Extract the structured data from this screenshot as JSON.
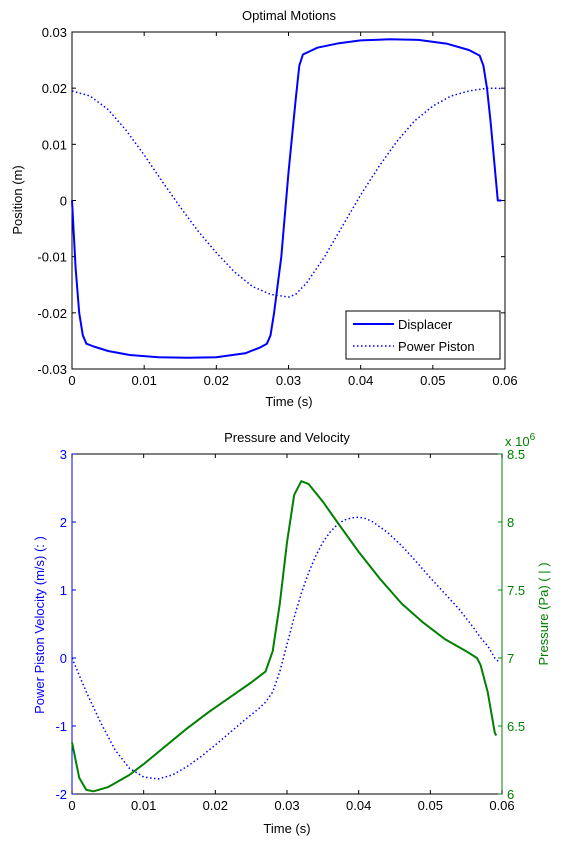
{
  "chart_data": [
    {
      "type": "line",
      "title": "Optimal Motions",
      "xlabel": "Time (s)",
      "ylabel": "Position (m)",
      "xlim": [
        0,
        0.06
      ],
      "ylim": [
        -0.03,
        0.03
      ],
      "xticks": [
        "0",
        "0.01",
        "0.02",
        "0.03",
        "0.04",
        "0.05",
        "0.06"
      ],
      "yticks": [
        "-0.03",
        "-0.02",
        "-0.01",
        "0",
        "0.01",
        "0.02",
        "0.03"
      ],
      "legend_position": "bottom-right",
      "grid": false,
      "series": [
        {
          "name": "Displacer",
          "color": "#0000ff",
          "style": "solid",
          "points": [
            [
              0,
              0
            ],
            [
              0.0005,
              -0.012
            ],
            [
              0.001,
              -0.02
            ],
            [
              0.0015,
              -0.024
            ],
            [
              0.002,
              -0.0255
            ],
            [
              0.003,
              -0.026
            ],
            [
              0.005,
              -0.0268
            ],
            [
              0.008,
              -0.0275
            ],
            [
              0.012,
              -0.0279
            ],
            [
              0.016,
              -0.028
            ],
            [
              0.02,
              -0.0279
            ],
            [
              0.024,
              -0.0272
            ],
            [
              0.026,
              -0.0262
            ],
            [
              0.027,
              -0.0255
            ],
            [
              0.0275,
              -0.024
            ],
            [
              0.028,
              -0.02
            ],
            [
              0.029,
              -0.01
            ],
            [
              0.03,
              0.005
            ],
            [
              0.031,
              0.018
            ],
            [
              0.0315,
              0.024
            ],
            [
              0.032,
              0.026
            ],
            [
              0.034,
              0.0272
            ],
            [
              0.037,
              0.028
            ],
            [
              0.04,
              0.0285
            ],
            [
              0.044,
              0.0287
            ],
            [
              0.048,
              0.0286
            ],
            [
              0.052,
              0.0279
            ],
            [
              0.055,
              0.0268
            ],
            [
              0.0565,
              0.0258
            ],
            [
              0.057,
              0.024
            ],
            [
              0.0575,
              0.02
            ],
            [
              0.058,
              0.014
            ],
            [
              0.0585,
              0.007
            ],
            [
              0.059,
              0
            ],
            [
              0.0595,
              0
            ]
          ]
        },
        {
          "name": "Power Piston",
          "color": "#0000ff",
          "style": "dotted",
          "points": [
            [
              0,
              0.0195
            ],
            [
              0.0025,
              0.0186
            ],
            [
              0.005,
              0.0162
            ],
            [
              0.0075,
              0.0125
            ],
            [
              0.01,
              0.0081
            ],
            [
              0.0125,
              0.0034
            ],
            [
              0.015,
              -0.0012
            ],
            [
              0.0175,
              -0.0055
            ],
            [
              0.02,
              -0.0093
            ],
            [
              0.0225,
              -0.0127
            ],
            [
              0.025,
              -0.0153
            ],
            [
              0.0275,
              -0.0167
            ],
            [
              0.03,
              -0.0172
            ],
            [
              0.031,
              -0.0167
            ],
            [
              0.0325,
              -0.0147
            ],
            [
              0.035,
              -0.01
            ],
            [
              0.0375,
              -0.0045
            ],
            [
              0.04,
              0.001
            ],
            [
              0.0425,
              0.006
            ],
            [
              0.045,
              0.0105
            ],
            [
              0.0475,
              0.0142
            ],
            [
              0.05,
              0.0168
            ],
            [
              0.0525,
              0.0186
            ],
            [
              0.055,
              0.0195
            ],
            [
              0.0575,
              0.02
            ],
            [
              0.059,
              0.02
            ],
            [
              0.0595,
              0.0199
            ]
          ]
        }
      ]
    },
    {
      "type": "line",
      "title": "Pressure and Velocity",
      "xlabel": "Time (s)",
      "ylabel_left": "Power Piston Velocity (m/s) (: )",
      "ylabel_right": "Pressure (Pa) ( | )",
      "right_axis_multiplier": "x 10^6",
      "xlim": [
        0,
        0.06
      ],
      "ylim_left": [
        -2,
        3
      ],
      "ylim_right": [
        6,
        8.5
      ],
      "xticks": [
        "0",
        "0.01",
        "0.02",
        "0.03",
        "0.04",
        "0.05",
        "0.06"
      ],
      "yticks_left": [
        "-2",
        "-1",
        "0",
        "1",
        "2",
        "3"
      ],
      "yticks_right": [
        "6",
        "6.5",
        "7",
        "7.5",
        "8",
        "8.5"
      ],
      "grid": false,
      "series": [
        {
          "name": "Power Piston Velocity",
          "axis": "left",
          "color": "#0000ff",
          "style": "dotted",
          "points": [
            [
              0,
              0
            ],
            [
              0.002,
              -0.5
            ],
            [
              0.004,
              -0.95
            ],
            [
              0.006,
              -1.35
            ],
            [
              0.008,
              -1.62
            ],
            [
              0.01,
              -1.75
            ],
            [
              0.012,
              -1.78
            ],
            [
              0.014,
              -1.72
            ],
            [
              0.016,
              -1.6
            ],
            [
              0.018,
              -1.45
            ],
            [
              0.02,
              -1.28
            ],
            [
              0.022,
              -1.1
            ],
            [
              0.024,
              -0.92
            ],
            [
              0.026,
              -0.75
            ],
            [
              0.027,
              -0.65
            ],
            [
              0.028,
              -0.5
            ],
            [
              0.029,
              -0.2
            ],
            [
              0.03,
              0.2
            ],
            [
              0.031,
              0.6
            ],
            [
              0.032,
              0.95
            ],
            [
              0.033,
              1.25
            ],
            [
              0.034,
              1.5
            ],
            [
              0.035,
              1.7
            ],
            [
              0.036,
              1.85
            ],
            [
              0.037,
              1.96
            ],
            [
              0.038,
              2.03
            ],
            [
              0.039,
              2.06
            ],
            [
              0.04,
              2.07
            ],
            [
              0.041,
              2.05
            ],
            [
              0.042,
              2.0
            ],
            [
              0.044,
              1.85
            ],
            [
              0.046,
              1.65
            ],
            [
              0.048,
              1.42
            ],
            [
              0.05,
              1.18
            ],
            [
              0.052,
              0.95
            ],
            [
              0.054,
              0.72
            ],
            [
              0.056,
              0.45
            ],
            [
              0.057,
              0.3
            ],
            [
              0.058,
              0.18
            ],
            [
              0.059,
              0
            ],
            [
              0.0595,
              -0.05
            ]
          ]
        },
        {
          "name": "Pressure",
          "axis": "right",
          "color": "#008000",
          "style": "solid",
          "points": [
            [
              0,
              6.38
            ],
            [
              0.001,
              6.12
            ],
            [
              0.002,
              6.03
            ],
            [
              0.003,
              6.02
            ],
            [
              0.005,
              6.05
            ],
            [
              0.008,
              6.14
            ],
            [
              0.01,
              6.22
            ],
            [
              0.013,
              6.35
            ],
            [
              0.016,
              6.48
            ],
            [
              0.019,
              6.6
            ],
            [
              0.022,
              6.71
            ],
            [
              0.025,
              6.82
            ],
            [
              0.027,
              6.9
            ],
            [
              0.028,
              7.05
            ],
            [
              0.029,
              7.4
            ],
            [
              0.03,
              7.85
            ],
            [
              0.031,
              8.2
            ],
            [
              0.032,
              8.3
            ],
            [
              0.033,
              8.28
            ],
            [
              0.035,
              8.15
            ],
            [
              0.037,
              8.0
            ],
            [
              0.04,
              7.78
            ],
            [
              0.043,
              7.58
            ],
            [
              0.046,
              7.4
            ],
            [
              0.049,
              7.26
            ],
            [
              0.052,
              7.14
            ],
            [
              0.055,
              7.05
            ],
            [
              0.0565,
              7.0
            ],
            [
              0.057,
              6.95
            ],
            [
              0.058,
              6.75
            ],
            [
              0.059,
              6.45
            ],
            [
              0.0592,
              6.43
            ]
          ]
        }
      ]
    }
  ]
}
